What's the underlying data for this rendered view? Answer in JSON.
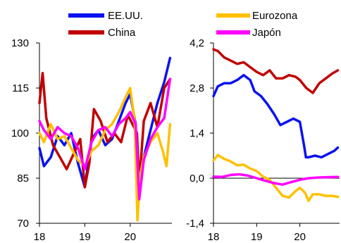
{
  "legend": [
    {
      "label": "EE.UU.",
      "color": "#0a12f0"
    },
    {
      "label": "China",
      "color": "#c00000"
    },
    {
      "label": "Eurozona",
      "color": "#ffc000"
    },
    {
      "label": "Japón",
      "color": "#ff00ff"
    }
  ],
  "chart_data": [
    {
      "type": "line",
      "xlabel": "",
      "ylabel": "",
      "xlim": [
        2018.0,
        2020.92
      ],
      "ylim": [
        70,
        130
      ],
      "x_ticks": [
        "18",
        "19",
        "20"
      ],
      "y_ticks": [
        "130",
        "115",
        "100",
        "85",
        "70"
      ],
      "grid": false,
      "series": [
        {
          "name": "EE.UU.",
          "color": "#0a12f0",
          "x": [
            2018.0,
            2018.1,
            2018.25,
            2018.4,
            2018.55,
            2018.7,
            2018.85,
            2019.0,
            2019.15,
            2019.3,
            2019.45,
            2019.6,
            2019.75,
            2019.9,
            2020.0,
            2020.12,
            2020.17,
            2020.22,
            2020.3,
            2020.45,
            2020.6,
            2020.75,
            2020.88
          ],
          "y": [
            95,
            89,
            92,
            99,
            96,
            100,
            90,
            82,
            98,
            101,
            96,
            98,
            104,
            110,
            113,
            103,
            76,
            88,
            92,
            101,
            110,
            117,
            125
          ]
        },
        {
          "name": "China",
          "color": "#c00000",
          "x": [
            2018.0,
            2018.07,
            2018.15,
            2018.3,
            2018.45,
            2018.6,
            2018.75,
            2018.9,
            2019.0,
            2019.1,
            2019.2,
            2019.35,
            2019.5,
            2019.65,
            2019.8,
            2019.95,
            2020.05,
            2020.15,
            2020.2,
            2020.3,
            2020.45,
            2020.6,
            2020.75,
            2020.88
          ],
          "y": [
            110,
            120,
            105,
            96,
            92,
            88,
            93,
            98,
            82,
            90,
            108,
            104,
            97,
            100,
            97,
            106,
            103,
            100,
            83,
            104,
            110,
            102,
            115,
            118
          ]
        },
        {
          "name": "Eurozona",
          "color": "#ffc000",
          "x": [
            2018.0,
            2018.1,
            2018.25,
            2018.4,
            2018.55,
            2018.7,
            2018.85,
            2019.0,
            2019.15,
            2019.3,
            2019.45,
            2019.6,
            2019.75,
            2019.9,
            2020.0,
            2020.1,
            2020.16,
            2020.22,
            2020.3,
            2020.45,
            2020.6,
            2020.72,
            2020.8,
            2020.88
          ],
          "y": [
            100,
            97,
            103,
            98,
            99,
            95,
            91,
            89,
            94,
            96,
            101,
            103,
            107,
            112,
            115,
            104,
            71,
            86,
            92,
            97,
            100,
            94,
            89,
            103
          ]
        },
        {
          "name": "Japón",
          "color": "#ff00ff",
          "x": [
            2018.0,
            2018.1,
            2018.25,
            2018.4,
            2018.55,
            2018.7,
            2018.85,
            2019.0,
            2019.15,
            2019.3,
            2019.45,
            2019.6,
            2019.75,
            2019.9,
            2020.0,
            2020.12,
            2020.2,
            2020.3,
            2020.45,
            2020.6,
            2020.75,
            2020.88
          ],
          "y": [
            104,
            101,
            98,
            102,
            100,
            99,
            95,
            88,
            97,
            101,
            102,
            99,
            103,
            105,
            107,
            103,
            78,
            91,
            98,
            102,
            105,
            118
          ]
        }
      ]
    },
    {
      "type": "line",
      "xlabel": "",
      "ylabel": "",
      "xlim": [
        2018.0,
        2020.92
      ],
      "ylim": [
        -1.4,
        4.2
      ],
      "x_ticks": [
        "18",
        "19",
        "20"
      ],
      "y_ticks": [
        "4,2",
        "2,8",
        "1,4",
        "0,0",
        "-1,4"
      ],
      "grid": false,
      "zero_line": true,
      "series": [
        {
          "name": "EE.UU.",
          "color": "#0a12f0",
          "x": [
            2018.0,
            2018.1,
            2018.25,
            2018.4,
            2018.55,
            2018.7,
            2018.85,
            2018.95,
            2019.1,
            2019.25,
            2019.4,
            2019.55,
            2019.7,
            2019.85,
            2020.0,
            2020.1,
            2020.14,
            2020.2,
            2020.35,
            2020.5,
            2020.65,
            2020.8,
            2020.88
          ],
          "y": [
            2.55,
            2.85,
            2.95,
            2.95,
            3.05,
            3.2,
            3.05,
            2.7,
            2.55,
            2.3,
            2.0,
            1.65,
            1.75,
            1.85,
            1.75,
            1.0,
            0.65,
            0.65,
            0.7,
            0.65,
            0.75,
            0.85,
            0.95
          ]
        },
        {
          "name": "China",
          "color": "#c00000",
          "x": [
            2018.0,
            2018.1,
            2018.25,
            2018.4,
            2018.55,
            2018.7,
            2018.85,
            2019.0,
            2019.15,
            2019.3,
            2019.45,
            2019.6,
            2019.75,
            2019.9,
            2020.0,
            2020.15,
            2020.3,
            2020.45,
            2020.6,
            2020.75,
            2020.88
          ],
          "y": [
            4.0,
            3.95,
            3.75,
            3.65,
            3.55,
            3.6,
            3.45,
            3.3,
            3.2,
            3.35,
            3.1,
            3.1,
            3.2,
            3.15,
            3.05,
            2.8,
            2.65,
            2.95,
            3.1,
            3.25,
            3.35
          ]
        },
        {
          "name": "Eurozona",
          "color": "#ffc000",
          "x": [
            2018.0,
            2018.1,
            2018.25,
            2018.4,
            2018.55,
            2018.7,
            2018.85,
            2019.0,
            2019.15,
            2019.3,
            2019.45,
            2019.6,
            2019.75,
            2019.9,
            2020.0,
            2020.12,
            2020.2,
            2020.3,
            2020.45,
            2020.6,
            2020.75,
            2020.88
          ],
          "y": [
            0.55,
            0.72,
            0.6,
            0.52,
            0.4,
            0.42,
            0.3,
            0.22,
            0.05,
            -0.05,
            -0.3,
            -0.55,
            -0.6,
            -0.4,
            -0.3,
            -0.45,
            -0.7,
            -0.5,
            -0.5,
            -0.55,
            -0.55,
            -0.58
          ]
        },
        {
          "name": "Japón",
          "color": "#ff00ff",
          "x": [
            2018.0,
            2018.2,
            2018.4,
            2018.6,
            2018.8,
            2019.0,
            2019.2,
            2019.4,
            2019.6,
            2019.8,
            2020.0,
            2020.2,
            2020.4,
            2020.6,
            2020.88
          ],
          "y": [
            0.05,
            0.04,
            0.1,
            0.12,
            0.08,
            0.0,
            -0.08,
            -0.15,
            -0.2,
            -0.12,
            -0.05,
            0.0,
            0.02,
            0.03,
            0.04
          ]
        }
      ]
    }
  ]
}
